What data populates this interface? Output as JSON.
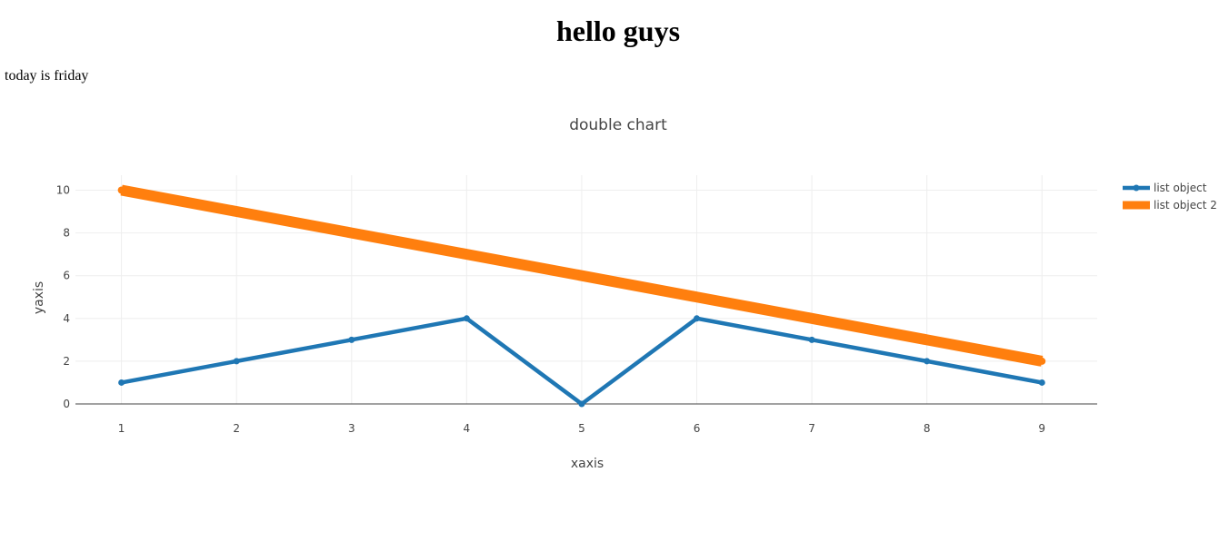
{
  "page": {
    "title": "hello guys",
    "subtitle": "today is friday"
  },
  "chart_data": {
    "type": "line",
    "title": "double chart",
    "xlabel": "xaxis",
    "ylabel": "yaxis",
    "xlim": [
      0.6,
      9.48
    ],
    "ylim": [
      0,
      10.7
    ],
    "xticks": [
      1,
      2,
      3,
      4,
      5,
      6,
      7,
      8,
      9
    ],
    "yticks": [
      0,
      2,
      4,
      6,
      8,
      10
    ],
    "grid": true,
    "legend_position": "top-right",
    "series": [
      {
        "name": "list object",
        "color": "#1f77b4",
        "x": [
          1,
          2,
          3,
          4,
          5,
          6,
          7,
          8,
          9
        ],
        "y": [
          1,
          2,
          3,
          4,
          0,
          4,
          3,
          2,
          1
        ]
      },
      {
        "name": "list object 2",
        "color": "#ff7f0e",
        "x": [
          1,
          2,
          3,
          4,
          5,
          6,
          7,
          8,
          9
        ],
        "y": [
          10,
          9,
          8,
          7,
          6,
          5,
          4,
          3,
          2
        ]
      }
    ]
  }
}
